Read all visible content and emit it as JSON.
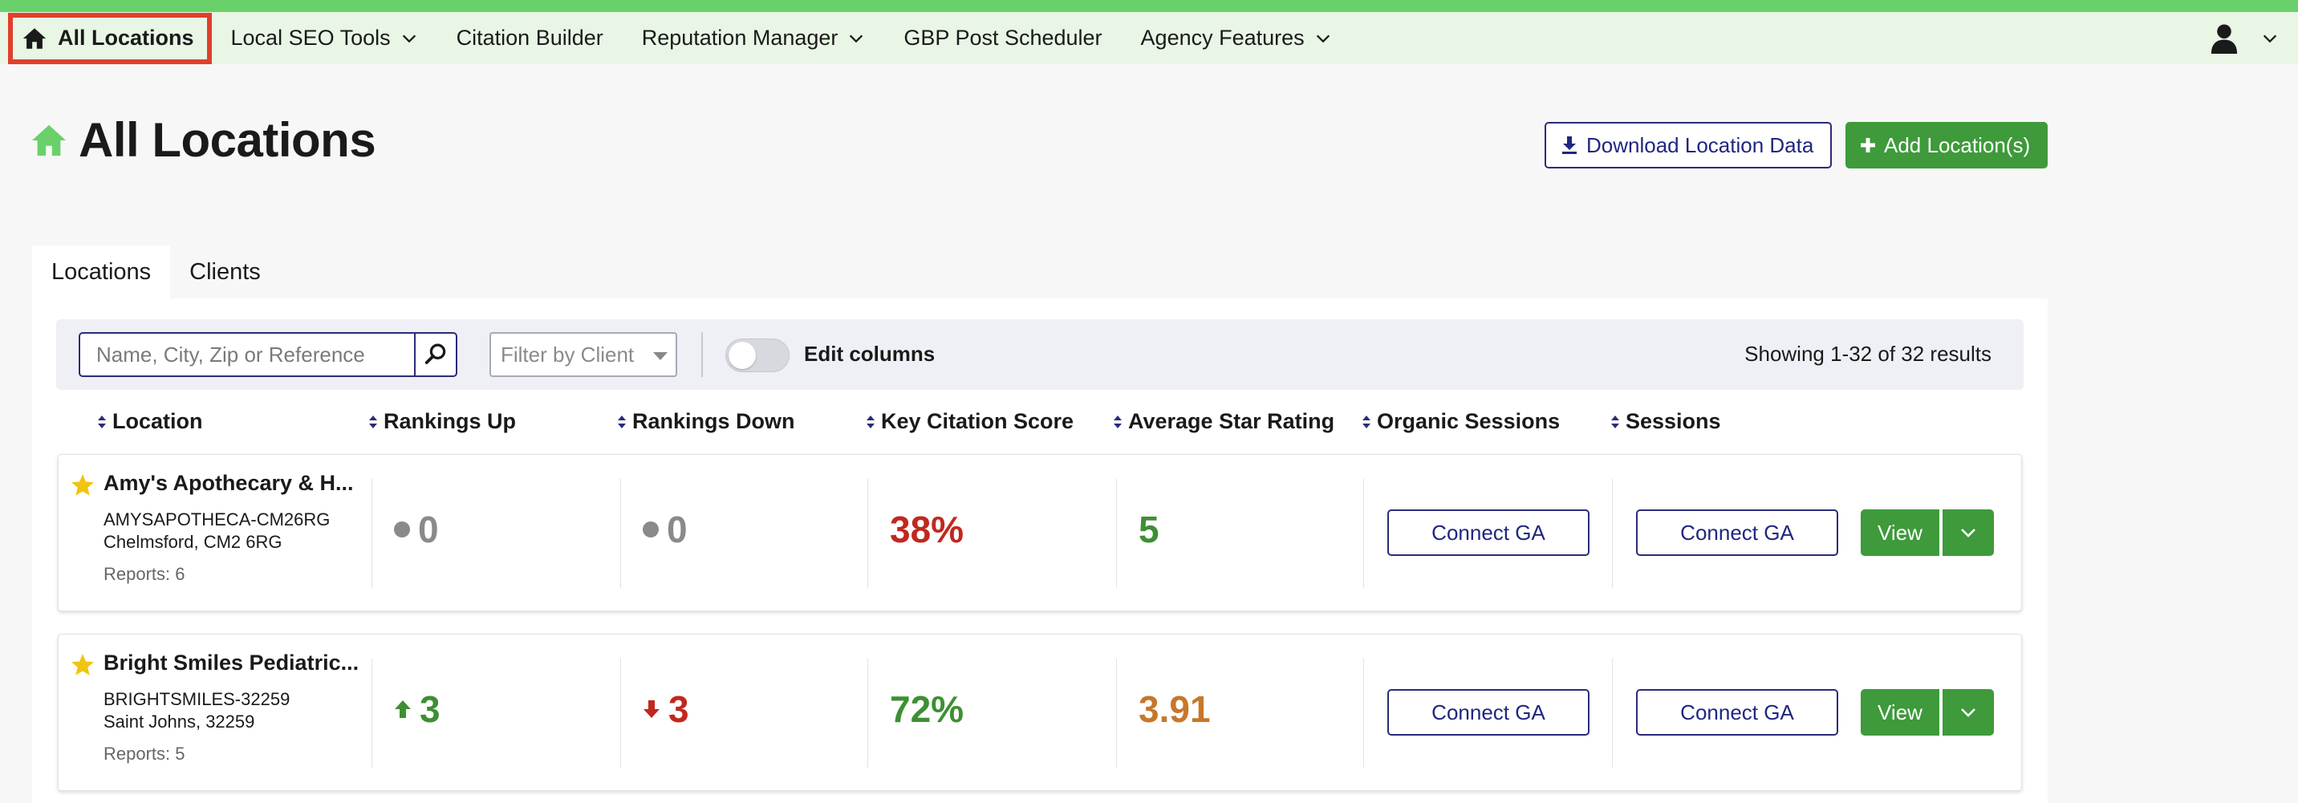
{
  "nav": {
    "home_label": "All Locations",
    "items": [
      {
        "label": "Local SEO Tools",
        "dropdown": true
      },
      {
        "label": "Citation Builder",
        "dropdown": false
      },
      {
        "label": "Reputation Manager",
        "dropdown": true
      },
      {
        "label": "GBP Post Scheduler",
        "dropdown": false
      },
      {
        "label": "Agency Features",
        "dropdown": true
      }
    ],
    "user_icon": "user-icon"
  },
  "page": {
    "title": "All Locations",
    "download_label": "Download Location Data",
    "add_label": "Add Location(s)"
  },
  "tabs": [
    {
      "label": "Locations",
      "active": true
    },
    {
      "label": "Clients",
      "active": false
    }
  ],
  "filters": {
    "search_placeholder": "Name, City, Zip or Reference",
    "client_placeholder": "Filter by Client",
    "edit_columns_label": "Edit columns",
    "edit_columns_on": false,
    "results_text": "Showing 1-32 of 32 results"
  },
  "columns": [
    "Location",
    "Rankings Up",
    "Rankings Down",
    "Key Citation Score",
    "Average Star Rating",
    "Organic Sessions",
    "Sessions"
  ],
  "rows": [
    {
      "name": "Amy's Apothecary & H...",
      "reference": "AMYSAPOTHECA-CM26RG",
      "address": "Chelmsford, CM2 6RG",
      "reports": "Reports: 6",
      "rankings_up": "0",
      "rankings_up_trend": "neutral",
      "rankings_down": "0",
      "rankings_down_trend": "neutral",
      "citation_score": "38%",
      "citation_color": "#c0281f",
      "star_rating": "5",
      "star_color": "#3e8f33",
      "organic_label": "Connect GA",
      "sessions_label": "Connect GA",
      "view_label": "View"
    },
    {
      "name": "Bright Smiles Pediatric...",
      "reference": "BRIGHTSMILES-32259",
      "address": "Saint Johns, 32259",
      "reports": "Reports: 5",
      "rankings_up": "3",
      "rankings_up_trend": "up",
      "rankings_down": "3",
      "rankings_down_trend": "down",
      "citation_score": "72%",
      "citation_color": "#3e8f33",
      "star_rating": "3.91",
      "star_color": "#c7772a",
      "organic_label": "Connect GA",
      "sessions_label": "Connect GA",
      "view_label": "View"
    }
  ],
  "colors": {
    "accent_green": "#3e9a3a",
    "nav_bg": "#e9f6e6",
    "top_stripe": "#6ad16a",
    "link_navy": "#1f2680",
    "highlight_red": "#e0402a"
  }
}
